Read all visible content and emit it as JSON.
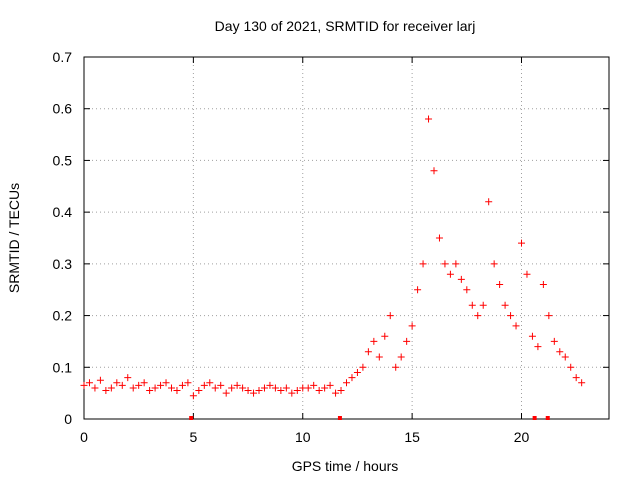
{
  "chart_data": {
    "type": "scatter",
    "title": "Day 130 of 2021, SRMTID for receiver larj",
    "xlabel": "GPS time / hours",
    "ylabel": "SRMTID / TECUs",
    "xlim": [
      0,
      24
    ],
    "ylim": [
      0,
      0.7
    ],
    "xticks": [
      0,
      5,
      10,
      15,
      20
    ],
    "yticks": [
      0,
      0.1,
      0.2,
      0.3,
      0.4,
      0.5,
      0.6,
      0.7
    ],
    "xtick_labels": [
      "0",
      "5",
      "10",
      "15",
      "20"
    ],
    "ytick_labels": [
      "0",
      "0.1",
      "0.2",
      "0.3",
      "0.4",
      "0.5",
      "0.6",
      "0.7"
    ],
    "grid": true,
    "marker": "+",
    "color": "#ff0000",
    "baseline_markers": [
      4.9,
      11.7,
      20.6,
      21.2
    ],
    "series": [
      {
        "name": "SRMTID",
        "x": [
          0.0,
          0.25,
          0.5,
          0.75,
          1.0,
          1.25,
          1.5,
          1.75,
          2.0,
          2.25,
          2.5,
          2.75,
          3.0,
          3.25,
          3.5,
          3.75,
          4.0,
          4.25,
          4.5,
          4.75,
          5.0,
          5.25,
          5.5,
          5.75,
          6.0,
          6.25,
          6.5,
          6.75,
          7.0,
          7.25,
          7.5,
          7.75,
          8.0,
          8.25,
          8.5,
          8.75,
          9.0,
          9.25,
          9.5,
          9.75,
          10.0,
          10.25,
          10.5,
          10.75,
          11.0,
          11.25,
          11.5,
          11.75,
          12.0,
          12.25,
          12.5,
          12.75,
          13.0,
          13.25,
          13.5,
          13.75,
          14.0,
          14.25,
          14.5,
          14.75,
          15.0,
          15.25,
          15.5,
          15.75,
          16.0,
          16.25,
          16.5,
          16.75,
          17.0,
          17.25,
          17.5,
          17.75,
          18.0,
          18.25,
          18.5,
          18.75,
          19.0,
          19.25,
          19.5,
          19.75,
          20.0,
          20.25,
          20.5,
          20.75,
          21.0,
          21.25,
          21.5,
          21.75,
          22.0,
          22.25,
          22.5,
          22.75
        ],
        "y": [
          0.065,
          0.07,
          0.06,
          0.075,
          0.055,
          0.06,
          0.07,
          0.065,
          0.08,
          0.06,
          0.065,
          0.07,
          0.055,
          0.06,
          0.065,
          0.07,
          0.06,
          0.055,
          0.065,
          0.07,
          0.045,
          0.055,
          0.065,
          0.07,
          0.06,
          0.065,
          0.05,
          0.06,
          0.065,
          0.06,
          0.055,
          0.05,
          0.055,
          0.06,
          0.065,
          0.06,
          0.055,
          0.06,
          0.05,
          0.055,
          0.06,
          0.06,
          0.065,
          0.055,
          0.06,
          0.065,
          0.05,
          0.055,
          0.07,
          0.08,
          0.09,
          0.1,
          0.13,
          0.15,
          0.12,
          0.16,
          0.2,
          0.1,
          0.12,
          0.15,
          0.18,
          0.25,
          0.3,
          0.58,
          0.48,
          0.35,
          0.3,
          0.28,
          0.3,
          0.27,
          0.25,
          0.22,
          0.2,
          0.22,
          0.42,
          0.3,
          0.26,
          0.22,
          0.2,
          0.18,
          0.34,
          0.28,
          0.16,
          0.14,
          0.26,
          0.2,
          0.15,
          0.13,
          0.12,
          0.1,
          0.08,
          0.07
        ]
      }
    ]
  }
}
